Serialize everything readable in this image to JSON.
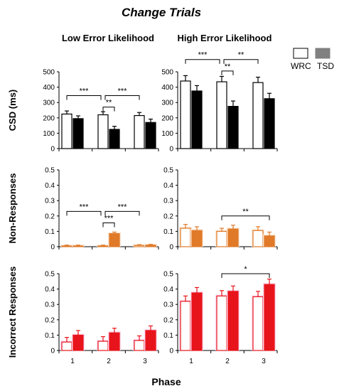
{
  "title": "Change Trials",
  "column_titles": [
    "Low Error Likelihood",
    "High Error Likelihood"
  ],
  "xlabel": "Phase",
  "legend": [
    {
      "label": "WRC",
      "color": "#ffffff"
    },
    {
      "label": "TSD",
      "color": "#808080"
    }
  ],
  "chart_data": [
    {
      "type": "bar",
      "row": 0,
      "col": 0,
      "ylabel": "CSD (ms)",
      "ylim": [
        0,
        500
      ],
      "yticks": [
        "0",
        "100",
        "200",
        "300",
        "400",
        "500"
      ],
      "categories": [
        "1",
        "2",
        "3"
      ],
      "color": "#000000",
      "tint": "#ffffff",
      "series": [
        {
          "name": "WRC",
          "values": [
            225,
            220,
            215
          ],
          "errors": [
            20,
            20,
            20
          ]
        },
        {
          "name": "TSD",
          "values": [
            195,
            125,
            170
          ],
          "errors": [
            18,
            20,
            22
          ]
        }
      ],
      "annotations": [
        {
          "from": "WRC-2",
          "to": "TSD-2",
          "label": "**",
          "level": 270
        },
        {
          "from": "WRC-1",
          "to": "WRC-2",
          "label": "***",
          "level": 345,
          "sep": "right"
        },
        {
          "from": "WRC-2",
          "to": "WRC-3",
          "label": "***",
          "level": 345,
          "sep": "left"
        }
      ]
    },
    {
      "type": "bar",
      "row": 0,
      "col": 1,
      "ylabel": "",
      "ylim": [
        0,
        500
      ],
      "yticks": [
        "0",
        "100",
        "200",
        "300",
        "400",
        "500"
      ],
      "categories": [
        "1",
        "2",
        "3"
      ],
      "color": "#000000",
      "tint": "#ffffff",
      "series": [
        {
          "name": "WRC",
          "values": [
            440,
            435,
            430
          ],
          "errors": [
            35,
            35,
            35
          ]
        },
        {
          "name": "TSD",
          "values": [
            375,
            275,
            325
          ],
          "errors": [
            35,
            35,
            35
          ]
        }
      ],
      "annotations": [
        {
          "from": "WRC-2",
          "to": "TSD-2",
          "label": "**",
          "level": 505
        },
        {
          "from": "WRC-1",
          "to": "WRC-2",
          "label": "***",
          "level": 580,
          "sep": "right"
        },
        {
          "from": "WRC-2",
          "to": "WRC-3",
          "label": "**",
          "level": 580,
          "sep": "left"
        }
      ]
    },
    {
      "type": "bar",
      "row": 1,
      "col": 0,
      "ylabel": "Non-Responses",
      "ylim": [
        0,
        0.5
      ],
      "yticks": [
        "0",
        "0.1",
        "0.2",
        "0.3",
        "0.4",
        "0.5"
      ],
      "categories": [
        "1",
        "2",
        "3"
      ],
      "color": "#e07a28",
      "tint": "#fbe7d6",
      "series": [
        {
          "name": "WRC",
          "values": [
            0.005,
            0.005,
            0.008
          ],
          "errors": [
            0.005,
            0.005,
            0.005
          ]
        },
        {
          "name": "TSD",
          "values": [
            0.005,
            0.085,
            0.01
          ],
          "errors": [
            0.005,
            0.01,
            0.005
          ]
        }
      ],
      "annotations": [
        {
          "from": "WRC-2",
          "to": "TSD-2",
          "label": "***",
          "level": 0.155
        },
        {
          "from": "WRC-1",
          "to": "WRC-2",
          "label": "***",
          "level": 0.23,
          "sep": "right"
        },
        {
          "from": "WRC-2",
          "to": "WRC-3",
          "label": "***",
          "level": 0.23,
          "sep": "left"
        }
      ]
    },
    {
      "type": "bar",
      "row": 1,
      "col": 1,
      "ylabel": "",
      "ylim": [
        0,
        0.5
      ],
      "yticks": [
        "0",
        "0.1",
        "0.2",
        "0.3",
        "0.4",
        "0.5"
      ],
      "categories": [
        "1",
        "2",
        "3"
      ],
      "color": "#e07a28",
      "tint": "#fbe7d6",
      "series": [
        {
          "name": "WRC",
          "values": [
            0.12,
            0.1,
            0.105
          ],
          "errors": [
            0.025,
            0.02,
            0.025
          ]
        },
        {
          "name": "TSD",
          "values": [
            0.105,
            0.115,
            0.07
          ],
          "errors": [
            0.025,
            0.025,
            0.025
          ]
        }
      ],
      "annotations": [
        {
          "from": "WRC-2",
          "to": "TSD-3",
          "label": "**",
          "level": 0.2
        }
      ]
    },
    {
      "type": "bar",
      "row": 2,
      "col": 0,
      "ylabel": "Incorrect Responses",
      "ylim": [
        0,
        0.5
      ],
      "yticks": [
        "0",
        "0.1",
        "0.2",
        "0.3",
        "0.4",
        "0.5"
      ],
      "categories": [
        "1",
        "2",
        "3"
      ],
      "color": "#e8141b",
      "tint": "#fbdaf0",
      "series": [
        {
          "name": "WRC",
          "values": [
            0.055,
            0.06,
            0.065
          ],
          "errors": [
            0.03,
            0.03,
            0.03
          ]
        },
        {
          "name": "TSD",
          "values": [
            0.1,
            0.115,
            0.13
          ],
          "errors": [
            0.03,
            0.03,
            0.03
          ]
        }
      ],
      "annotations": []
    },
    {
      "type": "bar",
      "row": 2,
      "col": 1,
      "ylabel": "",
      "ylim": [
        0,
        0.5
      ],
      "yticks": [
        "0",
        "0.1",
        "0.2",
        "0.3",
        "0.4",
        "0.5"
      ],
      "categories": [
        "1",
        "2",
        "3"
      ],
      "color": "#e8141b",
      "tint": "#fbdaf0",
      "series": [
        {
          "name": "WRC",
          "values": [
            0.32,
            0.355,
            0.35
          ],
          "errors": [
            0.035,
            0.035,
            0.035
          ]
        },
        {
          "name": "TSD",
          "values": [
            0.375,
            0.385,
            0.43
          ],
          "errors": [
            0.035,
            0.035,
            0.035
          ]
        }
      ],
      "annotations": [
        {
          "from": "WRC-2",
          "to": "TSD-3",
          "label": "*",
          "level": 0.5
        }
      ]
    }
  ]
}
